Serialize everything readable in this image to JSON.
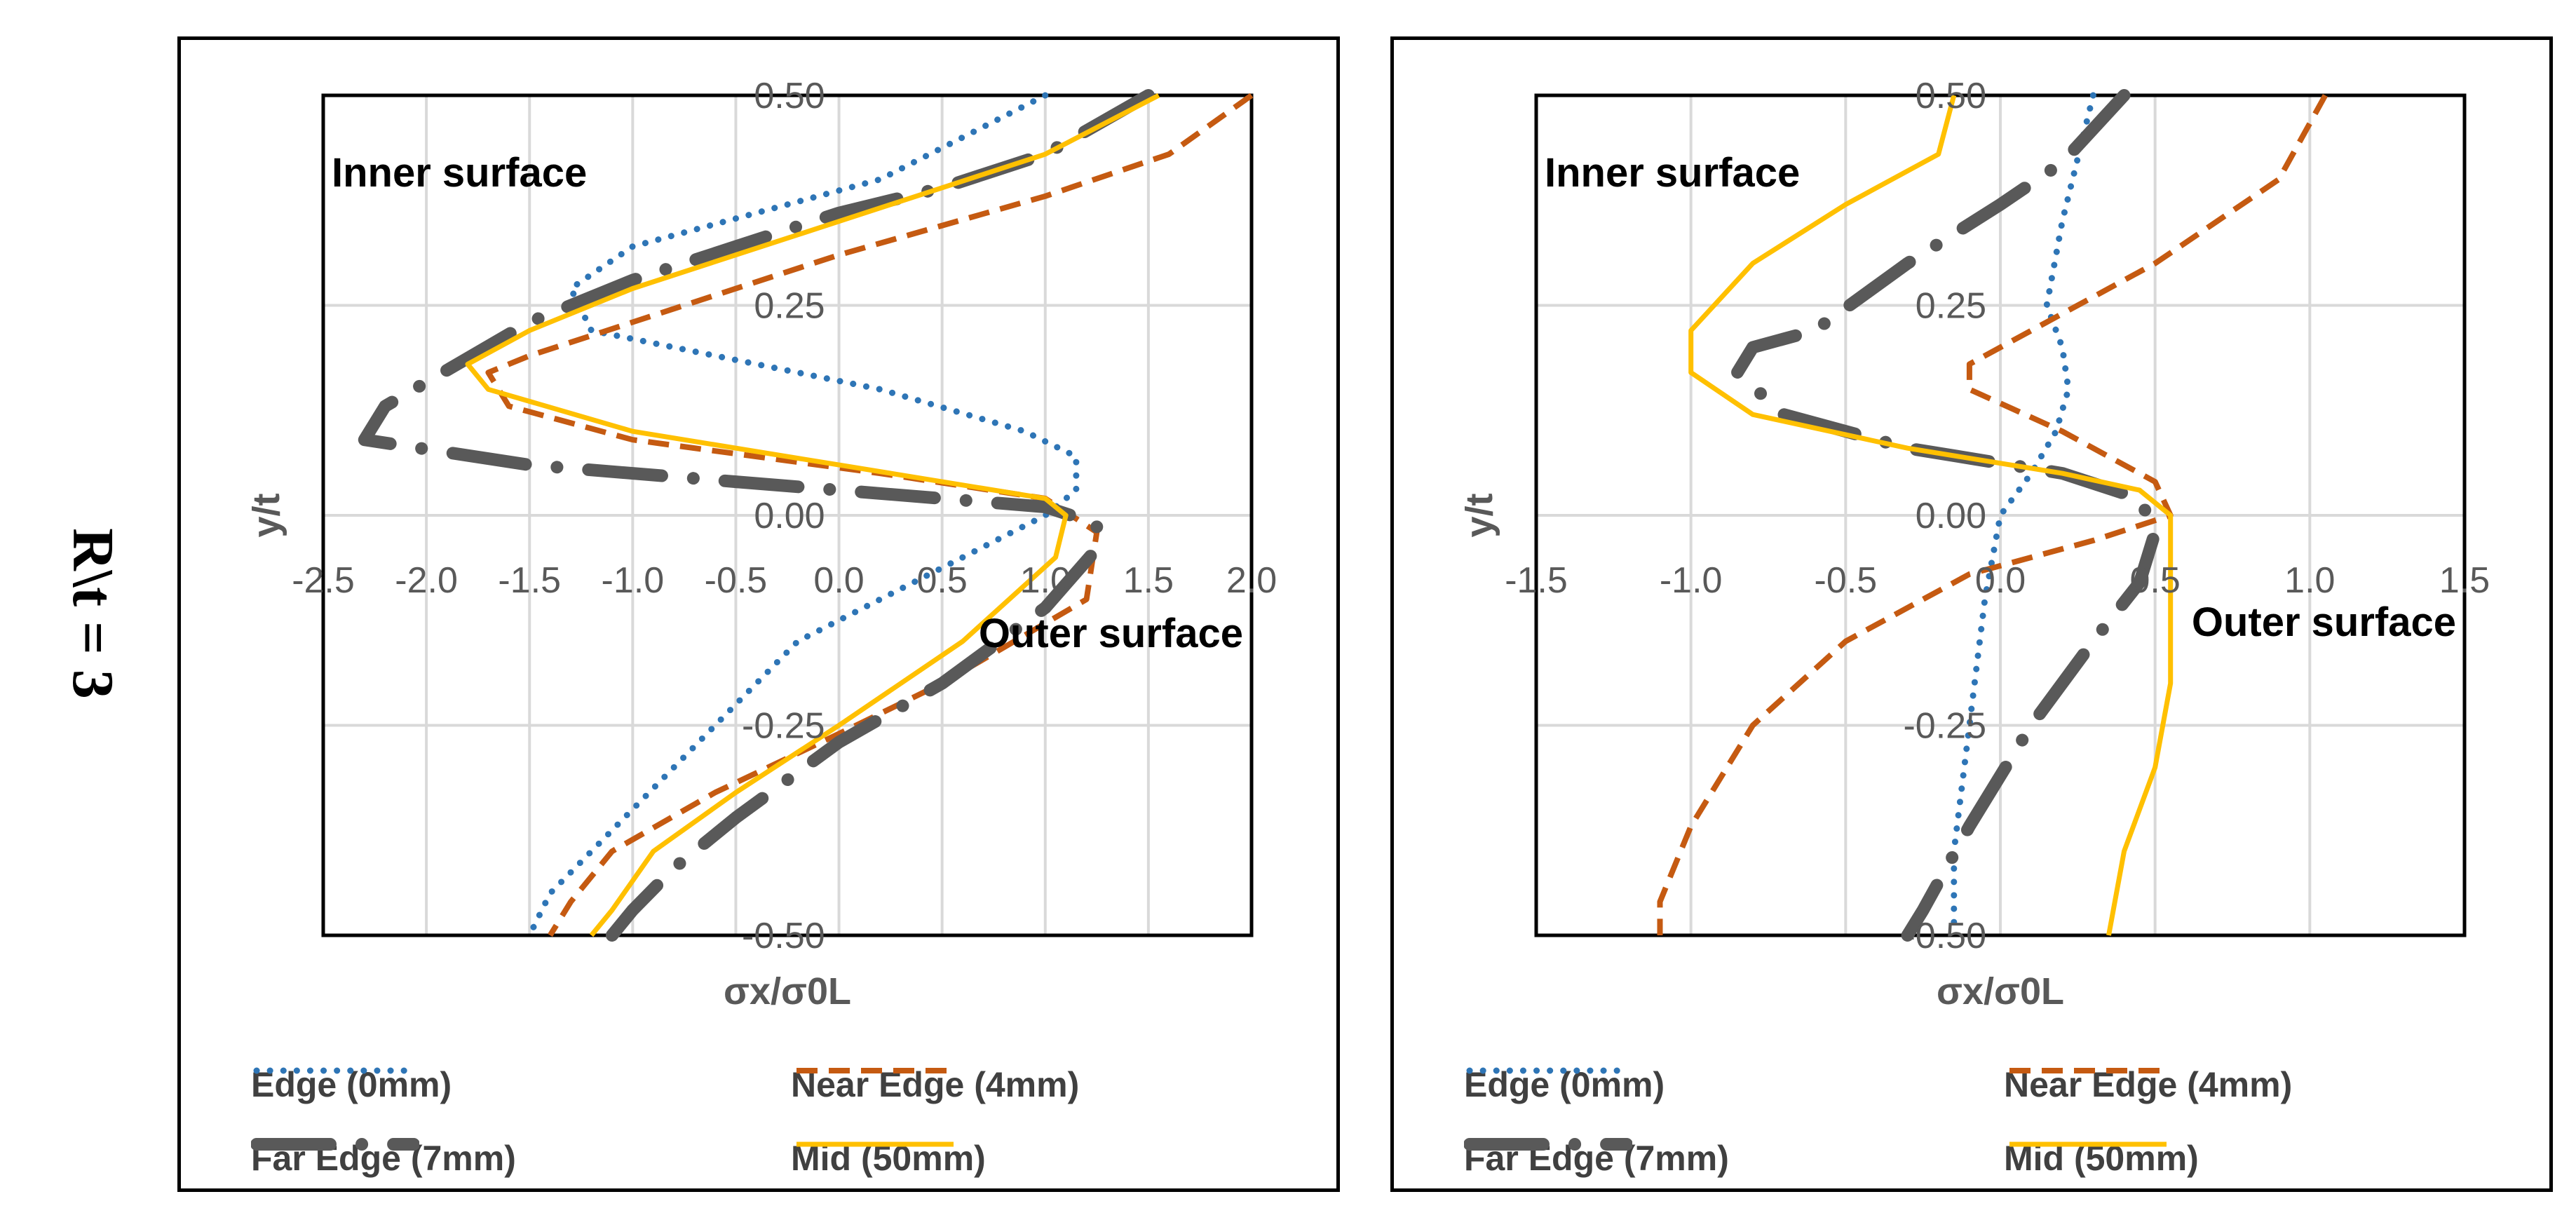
{
  "page": {
    "row_label": "R\\t = 3"
  },
  "colors": {
    "edge": "#2E75B6",
    "near_edge": "#C55A11",
    "far_edge": "#595959",
    "mid": "#FFC000",
    "grid": "#D9D9D9",
    "axis_text": "#595959"
  },
  "chart_data": [
    {
      "type": "line",
      "title": "",
      "xlabel": "σx/σ0L",
      "ylabel": "y/t",
      "xlim": [
        -2.5,
        2.0
      ],
      "ylim": [
        -0.5,
        0.5
      ],
      "xticks": [
        "-2.5",
        "-2.0",
        "-1.5",
        "-1.0",
        "-0.5",
        "0.0",
        "0.5",
        "1.0",
        "1.5",
        "2.0"
      ],
      "yticks": [
        "-0.50",
        "-0.25",
        "0.00",
        "0.25",
        "0.50"
      ],
      "grid": true,
      "annotations": {
        "inner": "Inner surface",
        "outer": "Outer surface"
      },
      "series": [
        {
          "name": "Edge (0mm)",
          "style": "dotted",
          "color_key": "edge",
          "points": [
            [
              1.0,
              0.5
            ],
            [
              0.2,
              0.4
            ],
            [
              -1.0,
              0.32
            ],
            [
              -1.3,
              0.27
            ],
            [
              -1.2,
              0.22
            ],
            [
              0.2,
              0.15
            ],
            [
              0.9,
              0.1
            ],
            [
              1.15,
              0.07
            ],
            [
              1.15,
              0.03
            ],
            [
              1.0,
              0.0
            ],
            [
              0.6,
              -0.05
            ],
            [
              -0.2,
              -0.15
            ],
            [
              -0.6,
              -0.25
            ],
            [
              -1.0,
              -0.35
            ],
            [
              -1.4,
              -0.45
            ],
            [
              -1.5,
              -0.5
            ]
          ]
        },
        {
          "name": "Near Edge (4mm)",
          "style": "dashed",
          "color_key": "near_edge",
          "points": [
            [
              2.0,
              0.5
            ],
            [
              1.6,
              0.43
            ],
            [
              1.0,
              0.38
            ],
            [
              0.0,
              0.31
            ],
            [
              -1.0,
              0.23
            ],
            [
              -1.5,
              0.19
            ],
            [
              -1.7,
              0.17
            ],
            [
              -1.6,
              0.13
            ],
            [
              -1.0,
              0.09
            ],
            [
              0.2,
              0.05
            ],
            [
              1.0,
              0.02
            ],
            [
              1.25,
              -0.02
            ],
            [
              1.2,
              -0.1
            ],
            [
              0.5,
              -0.2
            ],
            [
              0.0,
              -0.26
            ],
            [
              -0.6,
              -0.33
            ],
            [
              -1.1,
              -0.4
            ],
            [
              -1.3,
              -0.46
            ],
            [
              -1.4,
              -0.5
            ]
          ]
        },
        {
          "name": "Far Edge (7mm)",
          "style": "dashdot",
          "color_key": "far_edge",
          "points": [
            [
              1.5,
              0.5
            ],
            [
              1.0,
              0.43
            ],
            [
              0.5,
              0.39
            ],
            [
              0.0,
              0.36
            ],
            [
              -0.5,
              0.32
            ],
            [
              -1.0,
              0.28
            ],
            [
              -1.5,
              0.23
            ],
            [
              -2.2,
              0.13
            ],
            [
              -2.3,
              0.09
            ],
            [
              -1.5,
              0.06
            ],
            [
              -0.5,
              0.04
            ],
            [
              0.5,
              0.02
            ],
            [
              1.0,
              0.01
            ],
            [
              1.25,
              -0.01
            ],
            [
              1.25,
              -0.04
            ],
            [
              1.0,
              -0.11
            ],
            [
              0.5,
              -0.2
            ],
            [
              0.0,
              -0.27
            ],
            [
              -0.5,
              -0.36
            ],
            [
              -0.8,
              -0.42
            ],
            [
              -1.0,
              -0.47
            ],
            [
              -1.1,
              -0.5
            ]
          ]
        },
        {
          "name": "Mid (50mm)",
          "style": "solid",
          "color_key": "mid",
          "points": [
            [
              1.55,
              0.5
            ],
            [
              1.0,
              0.43
            ],
            [
              0.0,
              0.35
            ],
            [
              -1.0,
              0.27
            ],
            [
              -1.5,
              0.22
            ],
            [
              -1.8,
              0.18
            ],
            [
              -1.7,
              0.15
            ],
            [
              -1.0,
              0.1
            ],
            [
              0.0,
              0.06
            ],
            [
              1.0,
              0.02
            ],
            [
              1.1,
              0.0
            ],
            [
              1.05,
              -0.05
            ],
            [
              0.6,
              -0.15
            ],
            [
              0.0,
              -0.25
            ],
            [
              -0.5,
              -0.33
            ],
            [
              -0.9,
              -0.4
            ],
            [
              -1.1,
              -0.47
            ],
            [
              -1.2,
              -0.5
            ]
          ]
        }
      ],
      "legend": {
        "placement": "bottom",
        "labels": [
          "Edge (0mm)",
          "Near Edge (4mm)",
          "Far Edge (7mm)",
          "Mid (50mm)"
        ]
      }
    },
    {
      "type": "line",
      "title": "",
      "xlabel": "σx/σ0L",
      "ylabel": "y/t",
      "xlim": [
        -1.5,
        1.5
      ],
      "ylim": [
        -0.5,
        0.5
      ],
      "xticks": [
        "-1.5",
        "-1.0",
        "-0.5",
        "0.0",
        "0.5",
        "1.0",
        "1.5"
      ],
      "yticks": [
        "-0.50",
        "-0.25",
        "0.00",
        "0.25",
        "0.50"
      ],
      "grid": true,
      "annotations": {
        "inner": "Inner surface",
        "outer": "Outer surface"
      },
      "series": [
        {
          "name": "Edge (0mm)",
          "style": "dotted",
          "color_key": "edge",
          "points": [
            [
              0.3,
              0.5
            ],
            [
              0.2,
              0.35
            ],
            [
              0.15,
              0.25
            ],
            [
              0.2,
              0.2
            ],
            [
              0.22,
              0.15
            ],
            [
              0.18,
              0.1
            ],
            [
              0.1,
              0.05
            ],
            [
              0.0,
              0.0
            ],
            [
              -0.05,
              -0.1
            ],
            [
              -0.1,
              -0.25
            ],
            [
              -0.15,
              -0.4
            ],
            [
              -0.15,
              -0.5
            ]
          ]
        },
        {
          "name": "Near Edge (4mm)",
          "style": "dashed",
          "color_key": "near_edge",
          "points": [
            [
              1.05,
              0.5
            ],
            [
              0.9,
              0.4
            ],
            [
              0.5,
              0.3
            ],
            [
              0.1,
              0.22
            ],
            [
              -0.1,
              0.18
            ],
            [
              -0.1,
              0.15
            ],
            [
              0.2,
              0.1
            ],
            [
              0.5,
              0.04
            ],
            [
              0.55,
              0.0
            ],
            [
              0.3,
              -0.03
            ],
            [
              -0.1,
              -0.07
            ],
            [
              -0.5,
              -0.15
            ],
            [
              -0.8,
              -0.25
            ],
            [
              -1.0,
              -0.37
            ],
            [
              -1.1,
              -0.46
            ],
            [
              -1.1,
              -0.5
            ]
          ]
        },
        {
          "name": "Far Edge (7mm)",
          "style": "dashdot",
          "color_key": "far_edge",
          "points": [
            [
              0.4,
              0.5
            ],
            [
              0.2,
              0.42
            ],
            [
              0.0,
              0.37
            ],
            [
              -0.3,
              0.3
            ],
            [
              -0.6,
              0.22
            ],
            [
              -0.8,
              0.2
            ],
            [
              -0.85,
              0.17
            ],
            [
              -0.7,
              0.12
            ],
            [
              -0.3,
              0.08
            ],
            [
              0.2,
              0.05
            ],
            [
              0.45,
              0.02
            ],
            [
              0.5,
              -0.02
            ],
            [
              0.45,
              -0.08
            ],
            [
              0.3,
              -0.15
            ],
            [
              0.1,
              -0.25
            ],
            [
              -0.1,
              -0.37
            ],
            [
              -0.25,
              -0.47
            ],
            [
              -0.3,
              -0.5
            ]
          ]
        },
        {
          "name": "Mid (50mm)",
          "style": "solid",
          "color_key": "mid",
          "points": [
            [
              -0.15,
              0.5
            ],
            [
              -0.2,
              0.43
            ],
            [
              -0.5,
              0.37
            ],
            [
              -0.8,
              0.3
            ],
            [
              -1.0,
              0.22
            ],
            [
              -1.0,
              0.17
            ],
            [
              -0.8,
              0.12
            ],
            [
              -0.3,
              0.08
            ],
            [
              0.2,
              0.05
            ],
            [
              0.45,
              0.03
            ],
            [
              0.55,
              0.0
            ],
            [
              0.55,
              -0.05
            ],
            [
              0.55,
              -0.2
            ],
            [
              0.5,
              -0.3
            ],
            [
              0.4,
              -0.4
            ],
            [
              0.35,
              -0.5
            ]
          ]
        }
      ],
      "legend": {
        "placement": "bottom",
        "labels": [
          "Edge (0mm)",
          "Near Edge (4mm)",
          "Far Edge (7mm)",
          "Mid (50mm)"
        ]
      }
    }
  ]
}
